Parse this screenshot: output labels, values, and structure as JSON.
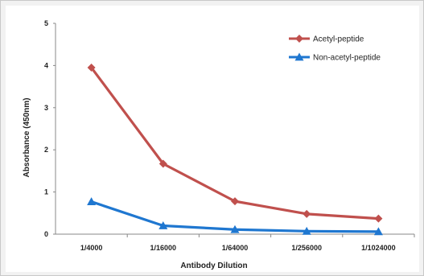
{
  "chart_data": {
    "type": "line",
    "categories": [
      "1/4000",
      "1/16000",
      "1/64000",
      "1/256000",
      "1/1024000"
    ],
    "xlabel": "Antibody Dilution",
    "ylabel": "Absorbance (450nm)",
    "ylim": [
      0,
      5
    ],
    "yticks": [
      "0",
      "1",
      "2",
      "3",
      "4",
      "5"
    ],
    "grid": false,
    "legend_position": "top-right",
    "series": [
      {
        "name": "Acetyl-peptide",
        "color": "#c0504d",
        "marker": "diamond",
        "values": [
          3.95,
          1.67,
          0.78,
          0.48,
          0.37
        ]
      },
      {
        "name": "Non-acetyl-peptide",
        "color": "#1f77d0",
        "marker": "triangle",
        "values": [
          0.77,
          0.2,
          0.11,
          0.07,
          0.06
        ]
      }
    ]
  }
}
